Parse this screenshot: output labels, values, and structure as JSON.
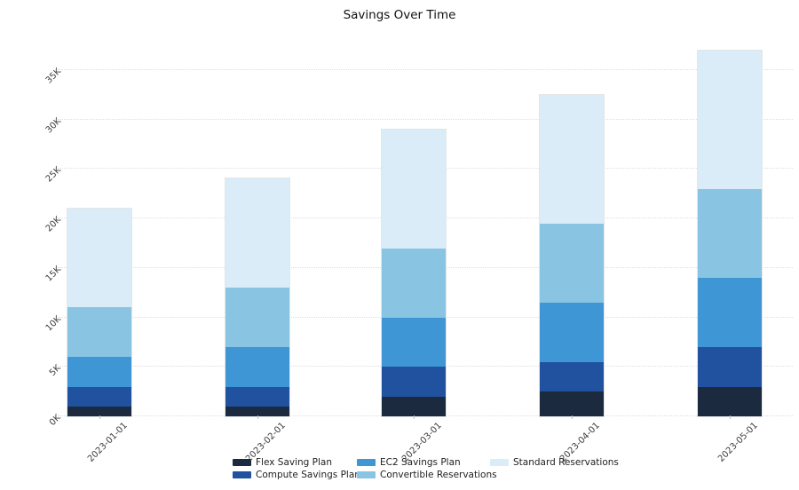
{
  "title": "Savings Over Time",
  "chart_data": {
    "type": "bar",
    "stacked": true,
    "title": "Savings Over Time",
    "xlabel": "",
    "ylabel": "",
    "categories": [
      "2023-01-01",
      "2023-02-01",
      "2023-03-01",
      "2023-04-01",
      "2023-05-01"
    ],
    "series": [
      {
        "name": "Flex Saving Plan",
        "color": "#1b2a3f",
        "values": [
          1000,
          1000,
          2000,
          2500,
          3000
        ]
      },
      {
        "name": "Compute Savings Plan",
        "color": "#21529f",
        "values": [
          2000,
          2000,
          3000,
          3000,
          4000
        ]
      },
      {
        "name": "EC2 Savings Plan",
        "color": "#3e96d4",
        "values": [
          3000,
          4000,
          5000,
          6000,
          7000
        ]
      },
      {
        "name": "Convertible Reservations",
        "color": "#8ac4e3",
        "values": [
          5000,
          6000,
          7000,
          8000,
          9000
        ]
      },
      {
        "name": "Standard Reservations",
        "color": "#dbecf9",
        "values": [
          10000,
          11000,
          12000,
          13000,
          14000
        ]
      }
    ],
    "stack_totals": [
      21000,
      24000,
      29000,
      32500,
      37000
    ],
    "ylim": [
      0,
      37500
    ],
    "ytick_step": 5000,
    "ytick_labels": [
      "0K",
      "5K",
      "10K",
      "15K",
      "20K",
      "25K",
      "30K",
      "35K"
    ],
    "grid": "horizontal-dotted",
    "legend_position": "bottom",
    "colors": {
      "grid": "#dedede",
      "tick_text": "#3b3b3b",
      "title_text": "#111111",
      "legend_text": "#222222",
      "background": "#ffffff"
    }
  }
}
